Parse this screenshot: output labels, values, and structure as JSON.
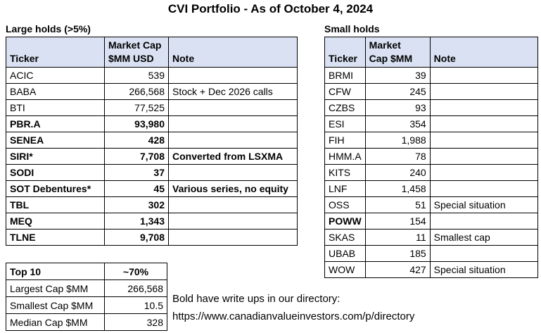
{
  "title": "CVI Portfolio - As of October 4, 2024",
  "colors": {
    "header_fill": "#D9E1F2",
    "border": "#000000",
    "background": "#FFFFFF",
    "text": "#000000"
  },
  "large_holds": {
    "label": "Large holds (>5%)",
    "columns": [
      [
        "Ticker"
      ],
      [
        "Market Cap",
        "$MM USD"
      ],
      [
        "Note"
      ]
    ],
    "aligns": [
      "left",
      "right",
      "left"
    ],
    "rows": [
      {
        "cells": [
          "ACIC",
          "539",
          ""
        ],
        "bold": false
      },
      {
        "cells": [
          "BABA",
          "266,568",
          "Stock + Dec 2026 calls"
        ],
        "bold": false
      },
      {
        "cells": [
          "BTI",
          "77,525",
          ""
        ],
        "bold": false
      },
      {
        "cells": [
          "PBR.A",
          "93,980",
          ""
        ],
        "bold": true
      },
      {
        "cells": [
          "SENEA",
          "428",
          ""
        ],
        "bold": true
      },
      {
        "cells": [
          "SIRI*",
          "7,708",
          "Converted from LSXMA"
        ],
        "bold": true
      },
      {
        "cells": [
          "SODI",
          "37",
          ""
        ],
        "bold": true
      },
      {
        "cells": [
          "SOT Debentures*",
          "45",
          "Various series, no equity"
        ],
        "bold": true
      },
      {
        "cells": [
          "TBL",
          "302",
          ""
        ],
        "bold": true
      },
      {
        "cells": [
          "MEQ",
          "1,343",
          ""
        ],
        "bold": true
      },
      {
        "cells": [
          "TLNE",
          "9,708",
          ""
        ],
        "bold": true
      }
    ]
  },
  "small_holds": {
    "label": "Small holds",
    "columns": [
      [
        "Ticker"
      ],
      [
        "Market",
        "Cap $MM"
      ],
      [
        "Note"
      ]
    ],
    "aligns": [
      "left",
      "right",
      "left"
    ],
    "rows": [
      {
        "cells": [
          "BRMI",
          "39",
          ""
        ],
        "bold": false
      },
      {
        "cells": [
          "CFW",
          "245",
          ""
        ],
        "bold": false
      },
      {
        "cells": [
          "CZBS",
          "93",
          ""
        ],
        "bold": false
      },
      {
        "cells": [
          "ESI",
          "354",
          ""
        ],
        "bold": false
      },
      {
        "cells": [
          "FIH",
          "1,988",
          ""
        ],
        "bold": false
      },
      {
        "cells": [
          "HMM.A",
          "78",
          ""
        ],
        "bold": false
      },
      {
        "cells": [
          "KITS",
          "240",
          ""
        ],
        "bold": false
      },
      {
        "cells": [
          "LNF",
          "1,458",
          ""
        ],
        "bold": false
      },
      {
        "cells": [
          "OSS",
          "51",
          "Special situation"
        ],
        "bold": false
      },
      {
        "cells": [
          "POWW",
          "154",
          ""
        ],
        "bold": true,
        "bold_cols": [
          0
        ]
      },
      {
        "cells": [
          "SKAS",
          "11",
          "Smallest cap"
        ],
        "bold": false
      },
      {
        "cells": [
          "UBAB",
          "185",
          ""
        ],
        "bold": false
      },
      {
        "cells": [
          "WOW",
          "427",
          "Special situation"
        ],
        "bold": false
      }
    ]
  },
  "summary": {
    "aligns": [
      "left",
      "right"
    ],
    "rows": [
      {
        "cells": [
          "Top 10",
          "~70%"
        ],
        "bold": true,
        "cell_aligns": [
          null,
          "center"
        ]
      },
      {
        "cells": [
          "Largest Cap $MM",
          "266,568"
        ],
        "bold": false
      },
      {
        "cells": [
          "Smallest Cap $MM",
          "10.5"
        ],
        "bold": false
      },
      {
        "cells": [
          "Median Cap $MM",
          "328"
        ],
        "bold": false
      }
    ]
  },
  "footer": {
    "line1": "Bold have write ups in our directory:",
    "line2": "https://www.canadianvalueinvestors.com/p/directory"
  }
}
